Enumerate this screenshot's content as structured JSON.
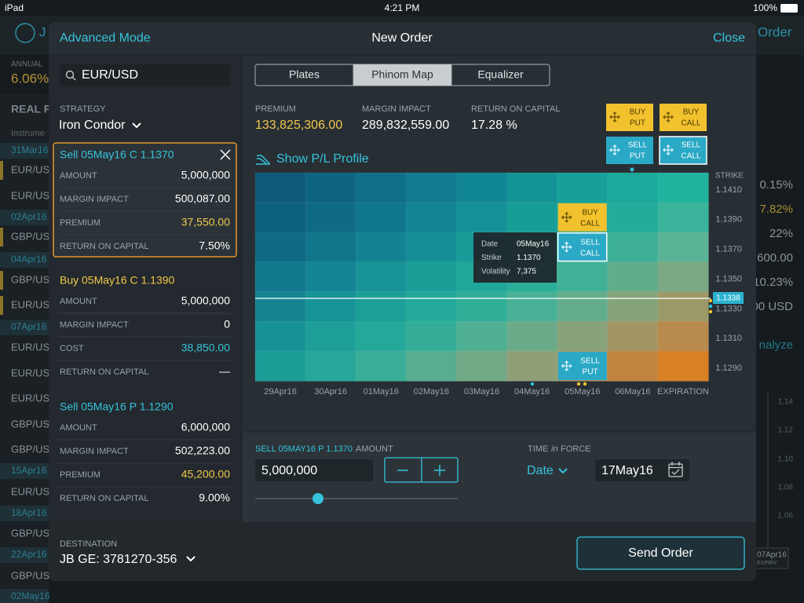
{
  "status_bar": {
    "carrier": "iPad",
    "time": "4:21 PM",
    "battery": "100%"
  },
  "background": {
    "user_initial": "J",
    "order": "Order",
    "annual_label": "ANNUAL",
    "annual_value": "6.06%",
    "section": "REAL P",
    "column": "Instrume",
    "left_rows": [
      "31Mar16",
      "EUR/US",
      "EUR/US",
      "02Apr16",
      "GBP/US",
      "04Apr16",
      "GBP/US",
      "EUR/US",
      "07Apr16",
      "EUR/US",
      "EUR/US",
      "EUR/US",
      "GBP/US",
      "GBP/US",
      "15Apr16",
      "EUR/US",
      "18Apr16",
      "GBP/US",
      "22Apr16",
      "GBP/US",
      "02May16"
    ],
    "right_values": [
      "0.15%",
      "7.82%",
      "22%",
      "600.00",
      "10.23%",
      "00 USD"
    ],
    "analyze": "nalyze",
    "axis": [
      "1.14",
      "1.12",
      "1.10",
      "1.08",
      "1.06"
    ],
    "expiry_date": "07Apr16",
    "expiry_label": "EXPIRY"
  },
  "header": {
    "left": "Advanced Mode",
    "title": "New Order",
    "right": "Close"
  },
  "search": "EUR/USD",
  "tabs": {
    "items": [
      "Plates",
      "Phinom Map",
      "Equalizer"
    ],
    "active": 1
  },
  "strategy": {
    "label": "STRATEGY",
    "value": "Iron Condor"
  },
  "legs": [
    {
      "title": "Sell 05May16 C 1.1370",
      "selected": true,
      "rows": [
        {
          "label": "AMOUNT",
          "value": "5,000,000"
        },
        {
          "label": "MARGIN IMPACT",
          "value": "500,087.00"
        },
        {
          "label": "PREMIUM",
          "value": "37,550.00",
          "color": "#f2c94c"
        },
        {
          "label": "RETURN ON CAPITAL",
          "value": "7.50%"
        }
      ]
    },
    {
      "title": "Buy 05May16 C 1.1390",
      "title_color": "#f2c94c",
      "rows": [
        {
          "label": "AMOUNT",
          "value": "5,000,000"
        },
        {
          "label": "MARGIN IMPACT",
          "value": "0"
        },
        {
          "label": "COST",
          "value": "38,850.00",
          "color": "#35c3dc"
        },
        {
          "label": "RETURN ON CAPITAL",
          "value": "—"
        }
      ]
    },
    {
      "title": "Sell 05May16 P  1.1290",
      "rows": [
        {
          "label": "AMOUNT",
          "value": "6,000,000"
        },
        {
          "label": "MARGIN IMPACT",
          "value": "502,223.00"
        },
        {
          "label": "PREMIUM",
          "value": "45,200.00",
          "color": "#f2c94c"
        },
        {
          "label": "RETURN ON CAPITAL",
          "value": "9.00%"
        }
      ]
    }
  ],
  "summary": [
    {
      "label": "PREMIUM",
      "value": "133,825,306.00",
      "color": "#f2c94c"
    },
    {
      "label": "MARGIN IMPACT",
      "value": "289,832,559.00"
    },
    {
      "label": "RETURN ON CAPITAL",
      "value": "17.28 %"
    }
  ],
  "order_buttons": [
    {
      "lines": [
        "BUY",
        "PUT"
      ],
      "color": "#f2c12e"
    },
    {
      "lines": [
        "BUY",
        "CALL"
      ],
      "color": "#f2c12e"
    },
    {
      "lines": [
        "SELL",
        "PUT"
      ],
      "color": "#2aa9c6"
    },
    {
      "lines": [
        "SELL",
        "CALL"
      ],
      "color": "#2aa9c6",
      "selected": true
    }
  ],
  "pl_profile": "Show P/L Profile",
  "heatmap": {
    "strike_label": "STRIKE",
    "dates": [
      "29Apr16",
      "30Apr16",
      "01May16",
      "02May16",
      "03May16",
      "04May16",
      "05May16",
      "06May16",
      "EXPIRATION"
    ],
    "strikes": [
      "1.1410",
      "1.1390",
      "1.1370",
      "1.1350",
      "1.1330",
      "1.1310",
      "1.1290"
    ],
    "current": "1.1338",
    "colors": [
      [
        "#0d5a7a",
        "#0e6483",
        "#0f6e8a",
        "#107a90",
        "#128794",
        "#149396",
        "#17a099",
        "#1aa99b",
        "#20b39e"
      ],
      [
        "#0e6080",
        "#0f6a88",
        "#10768e",
        "#128493",
        "#149196",
        "#179d98",
        "#1ba79a",
        "#22ad9a",
        "#3ab49a"
      ],
      [
        "#0f6a86",
        "#11758c",
        "#138292",
        "#158f95",
        "#189b98",
        "#1ca69a",
        "#25ac99",
        "#3db096",
        "#5ab394"
      ],
      [
        "#12788d",
        "#148592",
        "#179296",
        "#1a9e98",
        "#1fa89a",
        "#2aad99",
        "#42b096",
        "#60ad8c",
        "#7aa983"
      ],
      [
        "#158592",
        "#189396",
        "#1c9f98",
        "#22a99a",
        "#30ae98",
        "#48b095",
        "#64ad8c",
        "#86a47a",
        "#9b9a68"
      ],
      [
        "#189196",
        "#1d9e98",
        "#24a89a",
        "#34ad98",
        "#4eaf93",
        "#6bab89",
        "#8aa27a",
        "#a49565",
        "#b88a4e"
      ],
      [
        "#1c9d98",
        "#27a799",
        "#3aad97",
        "#56ad90",
        "#72a986",
        "#8fa078",
        "#a89364",
        "#c0843f",
        "#d97f25"
      ]
    ],
    "markers": [
      {
        "lines": [
          "BUY",
          "CALL"
        ],
        "date_index": 6,
        "strike_index": 1,
        "color": "#f2c12e"
      },
      {
        "lines": [
          "SELL",
          "CALL"
        ],
        "date_index": 6,
        "strike_index": 2,
        "color": "#2aa9c6",
        "selected": true
      },
      {
        "lines": [
          "SELL",
          "PUT"
        ],
        "date_index": 6,
        "strike_index": 6,
        "color": "#2aa9c6"
      }
    ],
    "tooltip": [
      {
        "label": "Date",
        "value": "05May16"
      },
      {
        "label": "Strike",
        "value": "1.1370"
      },
      {
        "label": "Volatility",
        "value": "7,375"
      }
    ]
  },
  "order_entry": {
    "leg": "SELL 05MAY16 P 1.1370",
    "amount_label": "AMOUNT",
    "amount": "5,000,000",
    "tif": [
      "TIME",
      "in",
      "FORCE"
    ],
    "tif_type": "Date",
    "tif_date": "17May16"
  },
  "destination": {
    "label": "DESTINATION",
    "value": "JB GE: 3781270-356"
  },
  "send": "Send Order"
}
